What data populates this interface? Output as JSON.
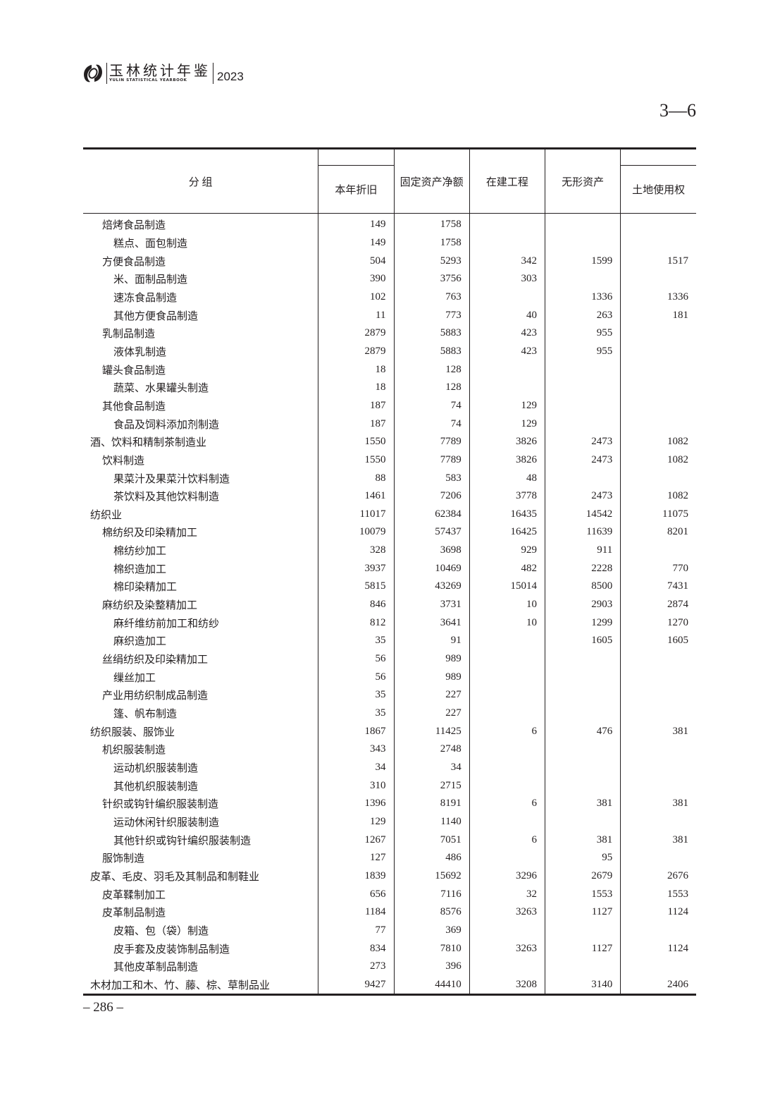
{
  "header": {
    "brand_cn": "玉林统计年鉴",
    "brand_en": "YULIN STATISTICAL YEARBOOK",
    "year": "2023"
  },
  "table_number": "3—6",
  "table": {
    "columns": [
      "分 组",
      "本年折旧",
      "固定资产净额",
      "在建工程",
      "无形资产",
      "土地使用权"
    ],
    "rows": [
      {
        "label": "焙烤食品制造",
        "level": 1,
        "values": [
          "149",
          "1758",
          "",
          "",
          ""
        ]
      },
      {
        "label": "糕点、面包制造",
        "level": 2,
        "values": [
          "149",
          "1758",
          "",
          "",
          ""
        ]
      },
      {
        "label": "方便食品制造",
        "level": 1,
        "values": [
          "504",
          "5293",
          "342",
          "1599",
          "1517"
        ]
      },
      {
        "label": "米、面制品制造",
        "level": 2,
        "values": [
          "390",
          "3756",
          "303",
          "",
          ""
        ]
      },
      {
        "label": "速冻食品制造",
        "level": 2,
        "values": [
          "102",
          "763",
          "",
          "1336",
          "1336"
        ]
      },
      {
        "label": "其他方便食品制造",
        "level": 2,
        "values": [
          "11",
          "773",
          "40",
          "263",
          "181"
        ]
      },
      {
        "label": "乳制品制造",
        "level": 1,
        "values": [
          "2879",
          "5883",
          "423",
          "955",
          ""
        ]
      },
      {
        "label": "液体乳制造",
        "level": 2,
        "values": [
          "2879",
          "5883",
          "423",
          "955",
          ""
        ]
      },
      {
        "label": "罐头食品制造",
        "level": 1,
        "values": [
          "18",
          "128",
          "",
          "",
          ""
        ]
      },
      {
        "label": "蔬菜、水果罐头制造",
        "level": 2,
        "values": [
          "18",
          "128",
          "",
          "",
          ""
        ]
      },
      {
        "label": "其他食品制造",
        "level": 1,
        "values": [
          "187",
          "74",
          "129",
          "",
          ""
        ]
      },
      {
        "label": "食品及饲料添加剂制造",
        "level": 2,
        "values": [
          "187",
          "74",
          "129",
          "",
          ""
        ]
      },
      {
        "label": "酒、饮料和精制茶制造业",
        "level": 0,
        "values": [
          "1550",
          "7789",
          "3826",
          "2473",
          "1082"
        ]
      },
      {
        "label": "饮料制造",
        "level": 1,
        "values": [
          "1550",
          "7789",
          "3826",
          "2473",
          "1082"
        ]
      },
      {
        "label": "果菜汁及果菜汁饮料制造",
        "level": 2,
        "values": [
          "88",
          "583",
          "48",
          "",
          ""
        ]
      },
      {
        "label": "茶饮料及其他饮料制造",
        "level": 2,
        "values": [
          "1461",
          "7206",
          "3778",
          "2473",
          "1082"
        ]
      },
      {
        "label": "纺织业",
        "level": 0,
        "values": [
          "11017",
          "62384",
          "16435",
          "14542",
          "11075"
        ]
      },
      {
        "label": "棉纺织及印染精加工",
        "level": 1,
        "values": [
          "10079",
          "57437",
          "16425",
          "11639",
          "8201"
        ]
      },
      {
        "label": "棉纺纱加工",
        "level": 2,
        "values": [
          "328",
          "3698",
          "929",
          "911",
          ""
        ]
      },
      {
        "label": "棉织造加工",
        "level": 2,
        "values": [
          "3937",
          "10469",
          "482",
          "2228",
          "770"
        ]
      },
      {
        "label": "棉印染精加工",
        "level": 2,
        "values": [
          "5815",
          "43269",
          "15014",
          "8500",
          "7431"
        ]
      },
      {
        "label": "麻纺织及染整精加工",
        "level": 1,
        "values": [
          "846",
          "3731",
          "10",
          "2903",
          "2874"
        ]
      },
      {
        "label": "麻纤维纺前加工和纺纱",
        "level": 2,
        "values": [
          "812",
          "3641",
          "10",
          "1299",
          "1270"
        ]
      },
      {
        "label": "麻织造加工",
        "level": 2,
        "values": [
          "35",
          "91",
          "",
          "1605",
          "1605"
        ]
      },
      {
        "label": "丝绢纺织及印染精加工",
        "level": 1,
        "values": [
          "56",
          "989",
          "",
          "",
          ""
        ]
      },
      {
        "label": "缫丝加工",
        "level": 2,
        "values": [
          "56",
          "989",
          "",
          "",
          ""
        ]
      },
      {
        "label": "产业用纺织制成品制造",
        "level": 1,
        "values": [
          "35",
          "227",
          "",
          "",
          ""
        ]
      },
      {
        "label": "篷、帆布制造",
        "level": 2,
        "values": [
          "35",
          "227",
          "",
          "",
          ""
        ]
      },
      {
        "label": "纺织服装、服饰业",
        "level": 0,
        "values": [
          "1867",
          "11425",
          "6",
          "476",
          "381"
        ]
      },
      {
        "label": "机织服装制造",
        "level": 1,
        "values": [
          "343",
          "2748",
          "",
          "",
          ""
        ]
      },
      {
        "label": "运动机织服装制造",
        "level": 2,
        "values": [
          "34",
          "34",
          "",
          "",
          ""
        ]
      },
      {
        "label": "其他机织服装制造",
        "level": 2,
        "values": [
          "310",
          "2715",
          "",
          "",
          ""
        ]
      },
      {
        "label": "针织或钩针编织服装制造",
        "level": 1,
        "values": [
          "1396",
          "8191",
          "6",
          "381",
          "381"
        ]
      },
      {
        "label": "运动休闲针织服装制造",
        "level": 2,
        "values": [
          "129",
          "1140",
          "",
          "",
          ""
        ]
      },
      {
        "label": "其他针织或钩针编织服装制造",
        "level": 2,
        "values": [
          "1267",
          "7051",
          "6",
          "381",
          "381"
        ]
      },
      {
        "label": "服饰制造",
        "level": 1,
        "values": [
          "127",
          "486",
          "",
          "95",
          ""
        ]
      },
      {
        "label": "皮革、毛皮、羽毛及其制品和制鞋业",
        "level": 0,
        "values": [
          "1839",
          "15692",
          "3296",
          "2679",
          "2676"
        ]
      },
      {
        "label": "皮革鞣制加工",
        "level": 1,
        "values": [
          "656",
          "7116",
          "32",
          "1553",
          "1553"
        ]
      },
      {
        "label": "皮革制品制造",
        "level": 1,
        "values": [
          "1184",
          "8576",
          "3263",
          "1127",
          "1124"
        ]
      },
      {
        "label": "皮箱、包（袋）制造",
        "level": 2,
        "values": [
          "77",
          "369",
          "",
          "",
          ""
        ]
      },
      {
        "label": "皮手套及皮装饰制品制造",
        "level": 2,
        "values": [
          "834",
          "7810",
          "3263",
          "1127",
          "1124"
        ]
      },
      {
        "label": "其他皮革制品制造",
        "level": 2,
        "values": [
          "273",
          "396",
          "",
          "",
          ""
        ]
      },
      {
        "label": "木材加工和木、竹、藤、棕、草制品业",
        "level": 0,
        "values": [
          "9427",
          "44410",
          "3208",
          "3140",
          "2406"
        ]
      }
    ]
  },
  "page_number": "– 286 –"
}
